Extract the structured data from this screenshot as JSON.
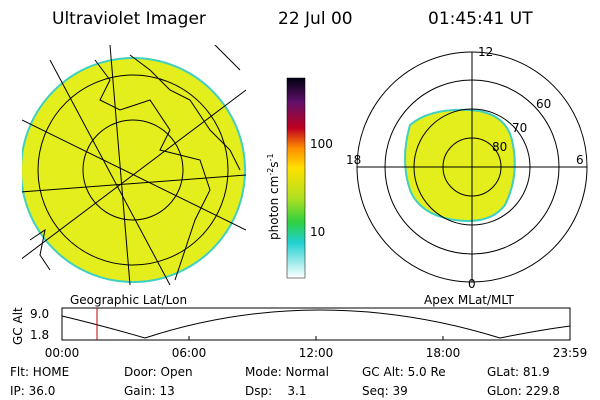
{
  "header": {
    "title": "Ultraviolet Imager",
    "date": "22 Jul 00",
    "time": "01:45:41 UT"
  },
  "colorbar": {
    "label": {
      "base": "photon cm",
      "exp1": "-2",
      "unit2": "s",
      "exp2": "-1"
    },
    "ticks": [
      "100",
      "10"
    ]
  },
  "left_panel": {
    "caption": "Geographic Lat/Lon"
  },
  "right_panel": {
    "caption": "Apex MLat/MLT",
    "mlt_labels": [
      "12",
      "18",
      "6",
      "0"
    ],
    "lat_labels": [
      "60",
      "70",
      "80"
    ]
  },
  "altitude_plot": {
    "ylabel": "GC Alt",
    "yticks": [
      "9.0",
      "1.8"
    ],
    "xticks": [
      "00:00",
      "06:00",
      "12:00",
      "18:00",
      "23:59"
    ]
  },
  "footer": {
    "rows": [
      [
        "Flt: HOME",
        "Door: Open",
        "Mode: Normal",
        "GC Alt: 5.0 Re",
        "GLat: 81.9"
      ],
      [
        "IP: 36.0",
        "Gain: 13",
        "Dsp:    3.1",
        "Seq: 39",
        "GLon: 229.8"
      ]
    ]
  }
}
